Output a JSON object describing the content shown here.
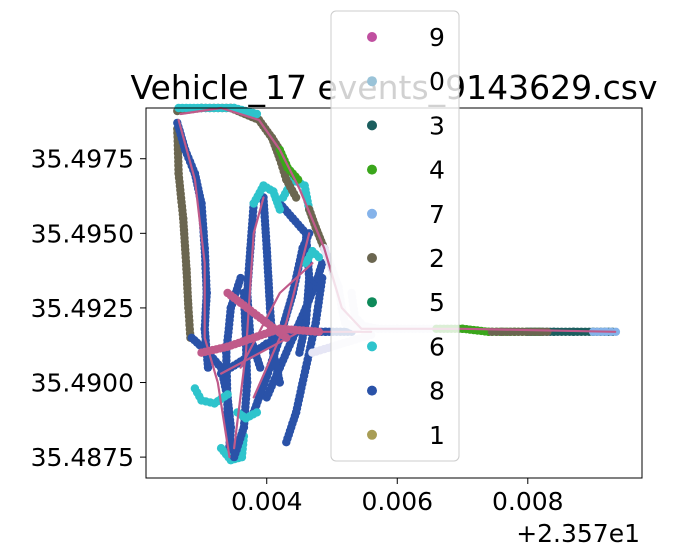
{
  "chart_data": {
    "type": "scatter",
    "title": "Vehicle_17 events_9143629.csv",
    "xlabel": "",
    "ylabel": "",
    "x_offset_label": "+2.357e1",
    "xlim": [
      0.00215,
      0.00975
    ],
    "ylim": [
      35.4868,
      35.4992
    ],
    "x_ticks": [
      0.004,
      0.006,
      0.008
    ],
    "x_tick_labels": [
      "0.004",
      "0.006",
      "0.008"
    ],
    "y_ticks": [
      35.4875,
      35.49,
      35.4925,
      35.495,
      35.4975
    ],
    "y_tick_labels": [
      "35.4875",
      "35.4900",
      "35.4925",
      "35.4950",
      "35.4975"
    ],
    "grid": false,
    "legend_position": "top-center",
    "route_color": "#c05a8a",
    "series": [
      {
        "name": "9",
        "color": "#c04fa0"
      },
      {
        "name": "0",
        "color": "#9ac3d8"
      },
      {
        "name": "3",
        "color": "#1b5e5e"
      },
      {
        "name": "4",
        "color": "#3aa61b"
      },
      {
        "name": "7",
        "color": "#85b3ea"
      },
      {
        "name": "2",
        "color": "#6b6650"
      },
      {
        "name": "5",
        "color": "#0e8a5a"
      },
      {
        "name": "6",
        "color": "#2ec4cc"
      },
      {
        "name": "8",
        "color": "#2a52a8"
      },
      {
        "name": "1",
        "color": "#a89d55"
      }
    ],
    "tracks": [
      {
        "color": "#6b6650",
        "points": [
          [
            0.00263,
            35.4991
          ],
          [
            0.003,
            35.4992
          ],
          [
            0.00345,
            35.4992
          ],
          [
            0.00388,
            35.4988
          ],
          [
            0.00408,
            35.4982
          ],
          [
            0.0042,
            35.4978
          ]
        ]
      },
      {
        "color": "#6b6650",
        "points": [
          [
            0.00263,
            35.4985
          ],
          [
            0.00265,
            35.497
          ],
          [
            0.00272,
            35.4955
          ],
          [
            0.00277,
            35.4938
          ],
          [
            0.0028,
            35.4925
          ],
          [
            0.00283,
            35.4915
          ]
        ]
      },
      {
        "color": "#2a52a8",
        "points": [
          [
            0.00263,
            35.4987
          ],
          [
            0.00275,
            35.4978
          ],
          [
            0.0029,
            35.497
          ],
          [
            0.003,
            35.496
          ],
          [
            0.00305,
            35.4945
          ],
          [
            0.00308,
            35.493
          ],
          [
            0.00305,
            35.4918
          ],
          [
            0.0031,
            35.4905
          ]
        ]
      },
      {
        "color": "#2a52a8",
        "points": [
          [
            0.00285,
            35.4915
          ],
          [
            0.0031,
            35.491
          ],
          [
            0.0033,
            35.4905
          ],
          [
            0.0034,
            35.4895
          ],
          [
            0.00345,
            35.4885
          ],
          [
            0.00342,
            35.4876
          ]
        ]
      },
      {
        "color": "#2ec4cc",
        "points": [
          [
            0.0033,
            35.4878
          ],
          [
            0.00345,
            35.4874
          ],
          [
            0.00362,
            35.4875
          ],
          [
            0.00365,
            35.4882
          ]
        ]
      },
      {
        "color": "#2a52a8",
        "points": [
          [
            0.0035,
            35.4875
          ],
          [
            0.00365,
            35.4885
          ],
          [
            0.0037,
            35.49
          ],
          [
            0.00368,
            35.4915
          ],
          [
            0.00365,
            35.493
          ]
        ]
      },
      {
        "color": "#2a52a8",
        "points": [
          [
            0.00345,
            35.4878
          ],
          [
            0.0034,
            35.489
          ],
          [
            0.00338,
            35.491
          ],
          [
            0.00345,
            35.4925
          ],
          [
            0.0036,
            35.4935
          ]
        ]
      },
      {
        "color": "#2a52a8",
        "points": [
          [
            0.0038,
            35.489
          ],
          [
            0.004,
            35.4902
          ],
          [
            0.0042,
            35.4915
          ],
          [
            0.0044,
            35.493
          ],
          [
            0.00455,
            35.4945
          ],
          [
            0.00465,
            35.495
          ]
        ]
      },
      {
        "color": "#2a52a8",
        "points": [
          [
            0.004,
            35.4895
          ],
          [
            0.0042,
            35.4905
          ],
          [
            0.0044,
            35.4915
          ],
          [
            0.0046,
            35.4925
          ],
          [
            0.00478,
            35.4935
          ],
          [
            0.00485,
            35.494
          ]
        ]
      },
      {
        "color": "#2a52a8",
        "points": [
          [
            0.0043,
            35.488
          ],
          [
            0.00445,
            35.489
          ],
          [
            0.0046,
            35.4905
          ],
          [
            0.00475,
            35.492
          ],
          [
            0.00485,
            35.4935
          ]
        ]
      },
      {
        "color": "#2a52a8",
        "points": [
          [
            0.0038,
            35.496
          ],
          [
            0.00375,
            35.4945
          ],
          [
            0.0037,
            35.493
          ],
          [
            0.00375,
            35.4915
          ],
          [
            0.0039,
            35.4905
          ]
        ]
      },
      {
        "color": "#2a52a8",
        "points": [
          [
            0.00395,
            35.4962
          ],
          [
            0.004,
            35.4945
          ],
          [
            0.00405,
            35.4925
          ],
          [
            0.0041,
            35.491
          ],
          [
            0.0042,
            35.49
          ]
        ]
      },
      {
        "color": "#2a52a8",
        "points": [
          [
            0.0042,
            35.496
          ],
          [
            0.0044,
            35.4955
          ],
          [
            0.0046,
            35.495
          ],
          [
            0.00465,
            35.4935
          ],
          [
            0.0046,
            35.492
          ],
          [
            0.0045,
            35.491
          ]
        ]
      },
      {
        "color": "#2ec4cc",
        "points": [
          [
            0.0038,
            35.496
          ],
          [
            0.00395,
            35.4966
          ],
          [
            0.0041,
            35.4964
          ],
          [
            0.0042,
            35.4958
          ]
        ]
      },
      {
        "color": "#2ec4cc",
        "points": [
          [
            0.00425,
            35.4962
          ],
          [
            0.0044,
            35.4968
          ],
          [
            0.00458,
            35.4966
          ],
          [
            0.00465,
            35.4958
          ]
        ]
      },
      {
        "color": "#2ec4cc",
        "points": [
          [
            0.00265,
            35.4992
          ],
          [
            0.003,
            35.4992
          ],
          [
            0.0035,
            35.4992
          ],
          [
            0.00385,
            35.499
          ]
        ]
      },
      {
        "color": "#6b6650",
        "points": [
          [
            0.00408,
            35.4982
          ],
          [
            0.0042,
            35.4975
          ],
          [
            0.0043,
            35.4968
          ],
          [
            0.00445,
            35.4962
          ]
        ]
      },
      {
        "color": "#3aa61b",
        "points": [
          [
            0.0042,
            35.4978
          ],
          [
            0.00432,
            35.4972
          ],
          [
            0.00448,
            35.4968
          ]
        ]
      },
      {
        "color": "#6b6650",
        "points": [
          [
            0.00465,
            35.4958
          ],
          [
            0.00475,
            35.4952
          ],
          [
            0.00488,
            35.4945
          ]
        ]
      },
      {
        "color": "#2ec4cc",
        "points": [
          [
            0.0046,
            35.494
          ],
          [
            0.0047,
            35.4944
          ],
          [
            0.0048,
            35.4942
          ]
        ]
      },
      {
        "color": "#2ec4cc",
        "points": [
          [
            0.0029,
            35.4898
          ],
          [
            0.003,
            35.4894
          ],
          [
            0.0032,
            35.4893
          ],
          [
            0.0034,
            35.4896
          ]
        ]
      },
      {
        "color": "#2ec4cc",
        "points": [
          [
            0.00355,
            35.489
          ],
          [
            0.00368,
            35.4888
          ],
          [
            0.00385,
            35.489
          ]
        ]
      },
      {
        "color": "#2a52a8",
        "points": [
          [
            0.0033,
            35.4903
          ],
          [
            0.0036,
            35.4907
          ],
          [
            0.004,
            35.4913
          ],
          [
            0.0044,
            35.4917
          ],
          [
            0.0049,
            35.4917
          ],
          [
            0.0053,
            35.4917
          ]
        ]
      },
      {
        "color": "#c05a8a",
        "points": [
          [
            0.003,
            35.491
          ],
          [
            0.0034,
            35.4912
          ],
          [
            0.0038,
            35.4915
          ],
          [
            0.0042,
            35.4918
          ],
          [
            0.0048,
            35.4917
          ]
        ]
      },
      {
        "color": "#c05a8a",
        "points": [
          [
            0.0034,
            35.493
          ],
          [
            0.0037,
            35.4925
          ],
          [
            0.004,
            35.492
          ],
          [
            0.0043,
            35.4915
          ]
        ]
      },
      {
        "color": "#e6e6f5",
        "points": [
          [
            0.00488,
            35.4945
          ],
          [
            0.005,
            35.4938
          ],
          [
            0.0051,
            35.4932
          ],
          [
            0.00515,
            35.4925
          ],
          [
            0.0052,
            35.492
          ],
          [
            0.0054,
            35.4918
          ]
        ]
      },
      {
        "color": "#e6e6f5",
        "points": [
          [
            0.0053,
            35.493
          ],
          [
            0.00535,
            35.4922
          ],
          [
            0.00548,
            35.4919
          ],
          [
            0.0057,
            35.4918
          ],
          [
            0.006,
            35.4918
          ],
          [
            0.0064,
            35.4918
          ],
          [
            0.0068,
            35.4918
          ]
        ]
      },
      {
        "color": "#e6e6f5",
        "points": [
          [
            0.0047,
            35.491
          ],
          [
            0.005,
            35.4912
          ],
          [
            0.0053,
            35.4914
          ],
          [
            0.0056,
            35.4916
          ]
        ]
      },
      {
        "color": "#3aa61b",
        "points": [
          [
            0.0066,
            35.4918
          ],
          [
            0.007,
            35.4918
          ],
          [
            0.0074,
            35.4917
          ],
          [
            0.0078,
            35.4917
          ],
          [
            0.0082,
            35.4917
          ]
        ]
      },
      {
        "color": "#1b5e5e",
        "points": [
          [
            0.008,
            35.4917
          ],
          [
            0.0084,
            35.4917
          ],
          [
            0.0087,
            35.4917
          ],
          [
            0.009,
            35.4917
          ],
          [
            0.0093,
            35.4917
          ]
        ]
      },
      {
        "color": "#85b3ea",
        "points": [
          [
            0.009,
            35.4917
          ],
          [
            0.0092,
            35.4917
          ],
          [
            0.00935,
            35.4917
          ]
        ]
      },
      {
        "color": "#6b6650",
        "points": [
          [
            0.00745,
            35.4917
          ],
          [
            0.0076,
            35.4917
          ],
          [
            0.0083,
            35.4917
          ]
        ]
      }
    ],
    "route_lines": [
      [
        [
          0.00268,
          35.499
        ],
        [
          0.0033,
          35.4992
        ],
        [
          0.00388,
          35.4988
        ],
        [
          0.0042,
          35.4978
        ],
        [
          0.0045,
          35.4965
        ],
        [
          0.00488,
          35.4945
        ],
        [
          0.00515,
          35.4925
        ],
        [
          0.00545,
          35.4918
        ],
        [
          0.007,
          35.4918
        ],
        [
          0.00934,
          35.4917
        ]
      ],
      [
        [
          0.00265,
          35.4988
        ],
        [
          0.0029,
          35.4968
        ],
        [
          0.00305,
          35.494
        ],
        [
          0.00305,
          35.4915
        ],
        [
          0.00325,
          35.49
        ],
        [
          0.00343,
          35.4875
        ]
      ],
      [
        [
          0.0035,
          35.4878
        ],
        [
          0.00368,
          35.491
        ],
        [
          0.0038,
          35.495
        ],
        [
          0.00395,
          35.4962
        ]
      ],
      [
        [
          0.0038,
          35.4895
        ],
        [
          0.0043,
          35.492
        ],
        [
          0.00465,
          35.495
        ]
      ],
      [
        [
          0.0036,
          35.4905
        ],
        [
          0.0042,
          35.493
        ],
        [
          0.0047,
          35.494
        ]
      ],
      [
        [
          0.0033,
          35.4903
        ],
        [
          0.0045,
          35.4917
        ],
        [
          0.0056,
          35.4917
        ]
      ]
    ]
  }
}
